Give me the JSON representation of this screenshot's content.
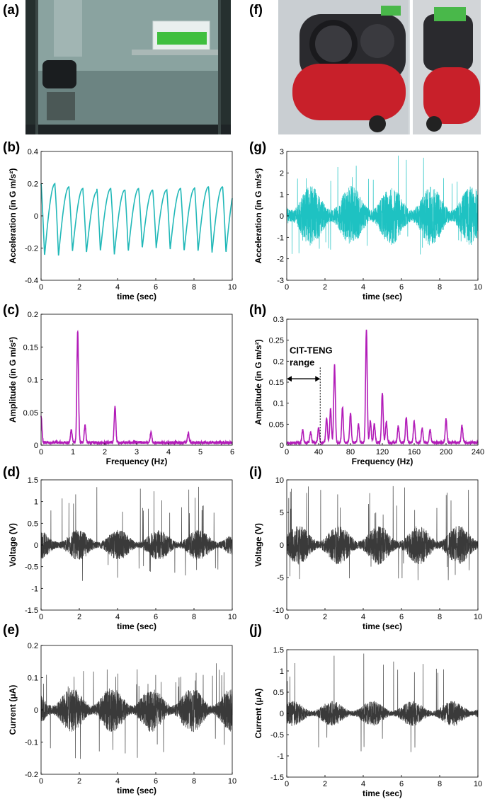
{
  "panel_labels": [
    "(a)",
    "(b)",
    "(c)",
    "(d)",
    "(e)",
    "(f)",
    "(g)",
    "(h)",
    "(i)",
    "(j)"
  ],
  "photos": {
    "a": {
      "description": "glass water tank with wave maker and floating CIT-TENG device",
      "colors": {
        "dark": "#1e2426",
        "water": "#7f9c9a",
        "device": "#3fbf3f"
      }
    },
    "f": {
      "description": "red air compressor with device mounted on top",
      "colors": {
        "tank": "#c8202a",
        "housing": "#2a2a2e",
        "bg": "#d8dde0",
        "device": "#49b84a"
      }
    }
  },
  "chart_data": [
    {
      "id": "b",
      "type": "line",
      "series_style": "periodic",
      "color": "#21b8b8",
      "xlabel": "time (sec)",
      "ylabel": "Acceleration (in G m/s²)",
      "xlim": [
        0,
        10
      ],
      "ylim": [
        -0.4,
        0.4
      ],
      "xticks": [
        "0",
        "2",
        "4",
        "6",
        "8",
        "10"
      ],
      "yticks": [
        "-0.4",
        "-0.2",
        "0",
        "0.2",
        "0.4"
      ],
      "peaks": [
        0.2,
        0.18,
        0.17,
        0.15,
        0.17,
        0.16,
        0.17,
        0.16,
        0.16,
        0.17,
        0.17,
        0.18,
        0.18,
        0.19
      ],
      "troughs": [
        -0.25,
        -0.25,
        -0.22,
        -0.23,
        -0.22,
        -0.24,
        -0.22,
        -0.2,
        -0.2,
        -0.21,
        -0.22,
        -0.22,
        -0.23
      ],
      "period_sec": 0.73
    },
    {
      "id": "c",
      "type": "line",
      "series_style": "spectrum",
      "color": "#b21cb8",
      "xlabel": "Frequency (Hz)",
      "ylabel": "Amplitude (in G m/s²)",
      "xlim": [
        0,
        6
      ],
      "ylim": [
        0,
        0.2
      ],
      "xticks": [
        "0",
        "1",
        "2",
        "3",
        "4",
        "5",
        "6"
      ],
      "yticks": [
        "0",
        "0.05",
        "0.1",
        "0.15",
        "0.2"
      ],
      "peaks": [
        [
          0.0,
          0.04
        ],
        [
          0.95,
          0.02
        ],
        [
          1.15,
          0.17
        ],
        [
          1.38,
          0.027
        ],
        [
          2.32,
          0.055
        ],
        [
          3.45,
          0.015
        ],
        [
          4.62,
          0.014
        ]
      ],
      "baseline": 0.004
    },
    {
      "id": "d",
      "type": "line",
      "series_style": "noise",
      "color": "#3a3a3a",
      "xlabel": "time (sec)",
      "ylabel": "Voltage (V)",
      "xlim": [
        0,
        10
      ],
      "ylim": [
        -1.5,
        1.5
      ],
      "xticks": [
        "0",
        "2",
        "4",
        "6",
        "8",
        "10"
      ],
      "yticks": [
        "-1.5",
        "-1",
        "-0.5",
        "0",
        "0.5",
        "1",
        "1.5"
      ],
      "envelope": 0.35,
      "max": 1.35,
      "min": -0.9
    },
    {
      "id": "e",
      "type": "line",
      "series_style": "noise",
      "color": "#3a3a3a",
      "xlabel": "time (sec)",
      "ylabel": "Current (μA)",
      "xlim": [
        0,
        10
      ],
      "ylim": [
        -0.2,
        0.2
      ],
      "xticks": [
        "0",
        "2",
        "4",
        "6",
        "8",
        "10"
      ],
      "yticks": [
        "-0.2",
        "-0.1",
        "0",
        "0.1",
        "0.2"
      ],
      "envelope": 0.07,
      "max": 0.145,
      "min": -0.175
    },
    {
      "id": "g",
      "type": "line",
      "series_style": "noise",
      "color": "#1ec2c2",
      "xlabel": "time (sec)",
      "ylabel": "Acceleration (in G m/s²)",
      "xlim": [
        0,
        10
      ],
      "ylim": [
        -3,
        3
      ],
      "xticks": [
        "0",
        "2",
        "4",
        "6",
        "8",
        "10"
      ],
      "yticks": [
        "-3",
        "-2",
        "-1",
        "0",
        "1",
        "2",
        "3"
      ],
      "envelope": 1.4,
      "max": 2.9,
      "min": -1.9
    },
    {
      "id": "h",
      "type": "line",
      "series_style": "spectrum",
      "color": "#b21cb8",
      "xlabel": "Frequency (Hz)",
      "ylabel": "Amplitude (in G m/s²)",
      "xlim": [
        0,
        240
      ],
      "ylim": [
        0,
        0.3
      ],
      "xticks": [
        "0",
        "40",
        "80",
        "120",
        "160",
        "200",
        "240"
      ],
      "yticks": [
        "0",
        "0.05",
        "0.1",
        "0.15",
        "0.2",
        "0.25",
        "0.3"
      ],
      "peaks": [
        [
          20,
          0.03
        ],
        [
          30,
          0.025
        ],
        [
          40,
          0.035
        ],
        [
          50,
          0.06
        ],
        [
          55,
          0.08
        ],
        [
          60,
          0.185
        ],
        [
          70,
          0.085
        ],
        [
          80,
          0.07
        ],
        [
          90,
          0.045
        ],
        [
          100,
          0.268
        ],
        [
          105,
          0.05
        ],
        [
          110,
          0.045
        ],
        [
          120,
          0.12
        ],
        [
          125,
          0.05
        ],
        [
          140,
          0.04
        ],
        [
          150,
          0.06
        ],
        [
          160,
          0.05
        ],
        [
          170,
          0.035
        ],
        [
          180,
          0.03
        ],
        [
          200,
          0.055
        ],
        [
          220,
          0.04
        ]
      ],
      "baseline": 0.006,
      "annotation": {
        "label_line1": "CIT-TENG",
        "label_line2": "range",
        "range": [
          0,
          42
        ],
        "arrow_y": 0.158
      }
    },
    {
      "id": "i",
      "type": "line",
      "series_style": "noise",
      "color": "#3a3a3a",
      "xlabel": "time (sec)",
      "ylabel": "Voltage (V)",
      "xlim": [
        0,
        10
      ],
      "ylim": [
        -10,
        10
      ],
      "xticks": [
        "0",
        "2",
        "4",
        "6",
        "8",
        "10"
      ],
      "yticks": [
        "-10",
        "-5",
        "0",
        "5",
        "10"
      ],
      "envelope": 3.0,
      "max": 9.3,
      "min": -5.6
    },
    {
      "id": "j",
      "type": "line",
      "series_style": "noise",
      "color": "#3a3a3a",
      "xlabel": "time (sec)",
      "ylabel": "Current (μA)",
      "xlim": [
        0,
        10
      ],
      "ylim": [
        -1.5,
        1.5
      ],
      "xticks": [
        "0",
        "2",
        "4",
        "6",
        "8",
        "10"
      ],
      "yticks": [
        "-1.5",
        "-1",
        "-0.5",
        "0",
        "0.5",
        "1",
        "1.5"
      ],
      "envelope": 0.3,
      "max": 1.48,
      "min": -0.95
    }
  ]
}
